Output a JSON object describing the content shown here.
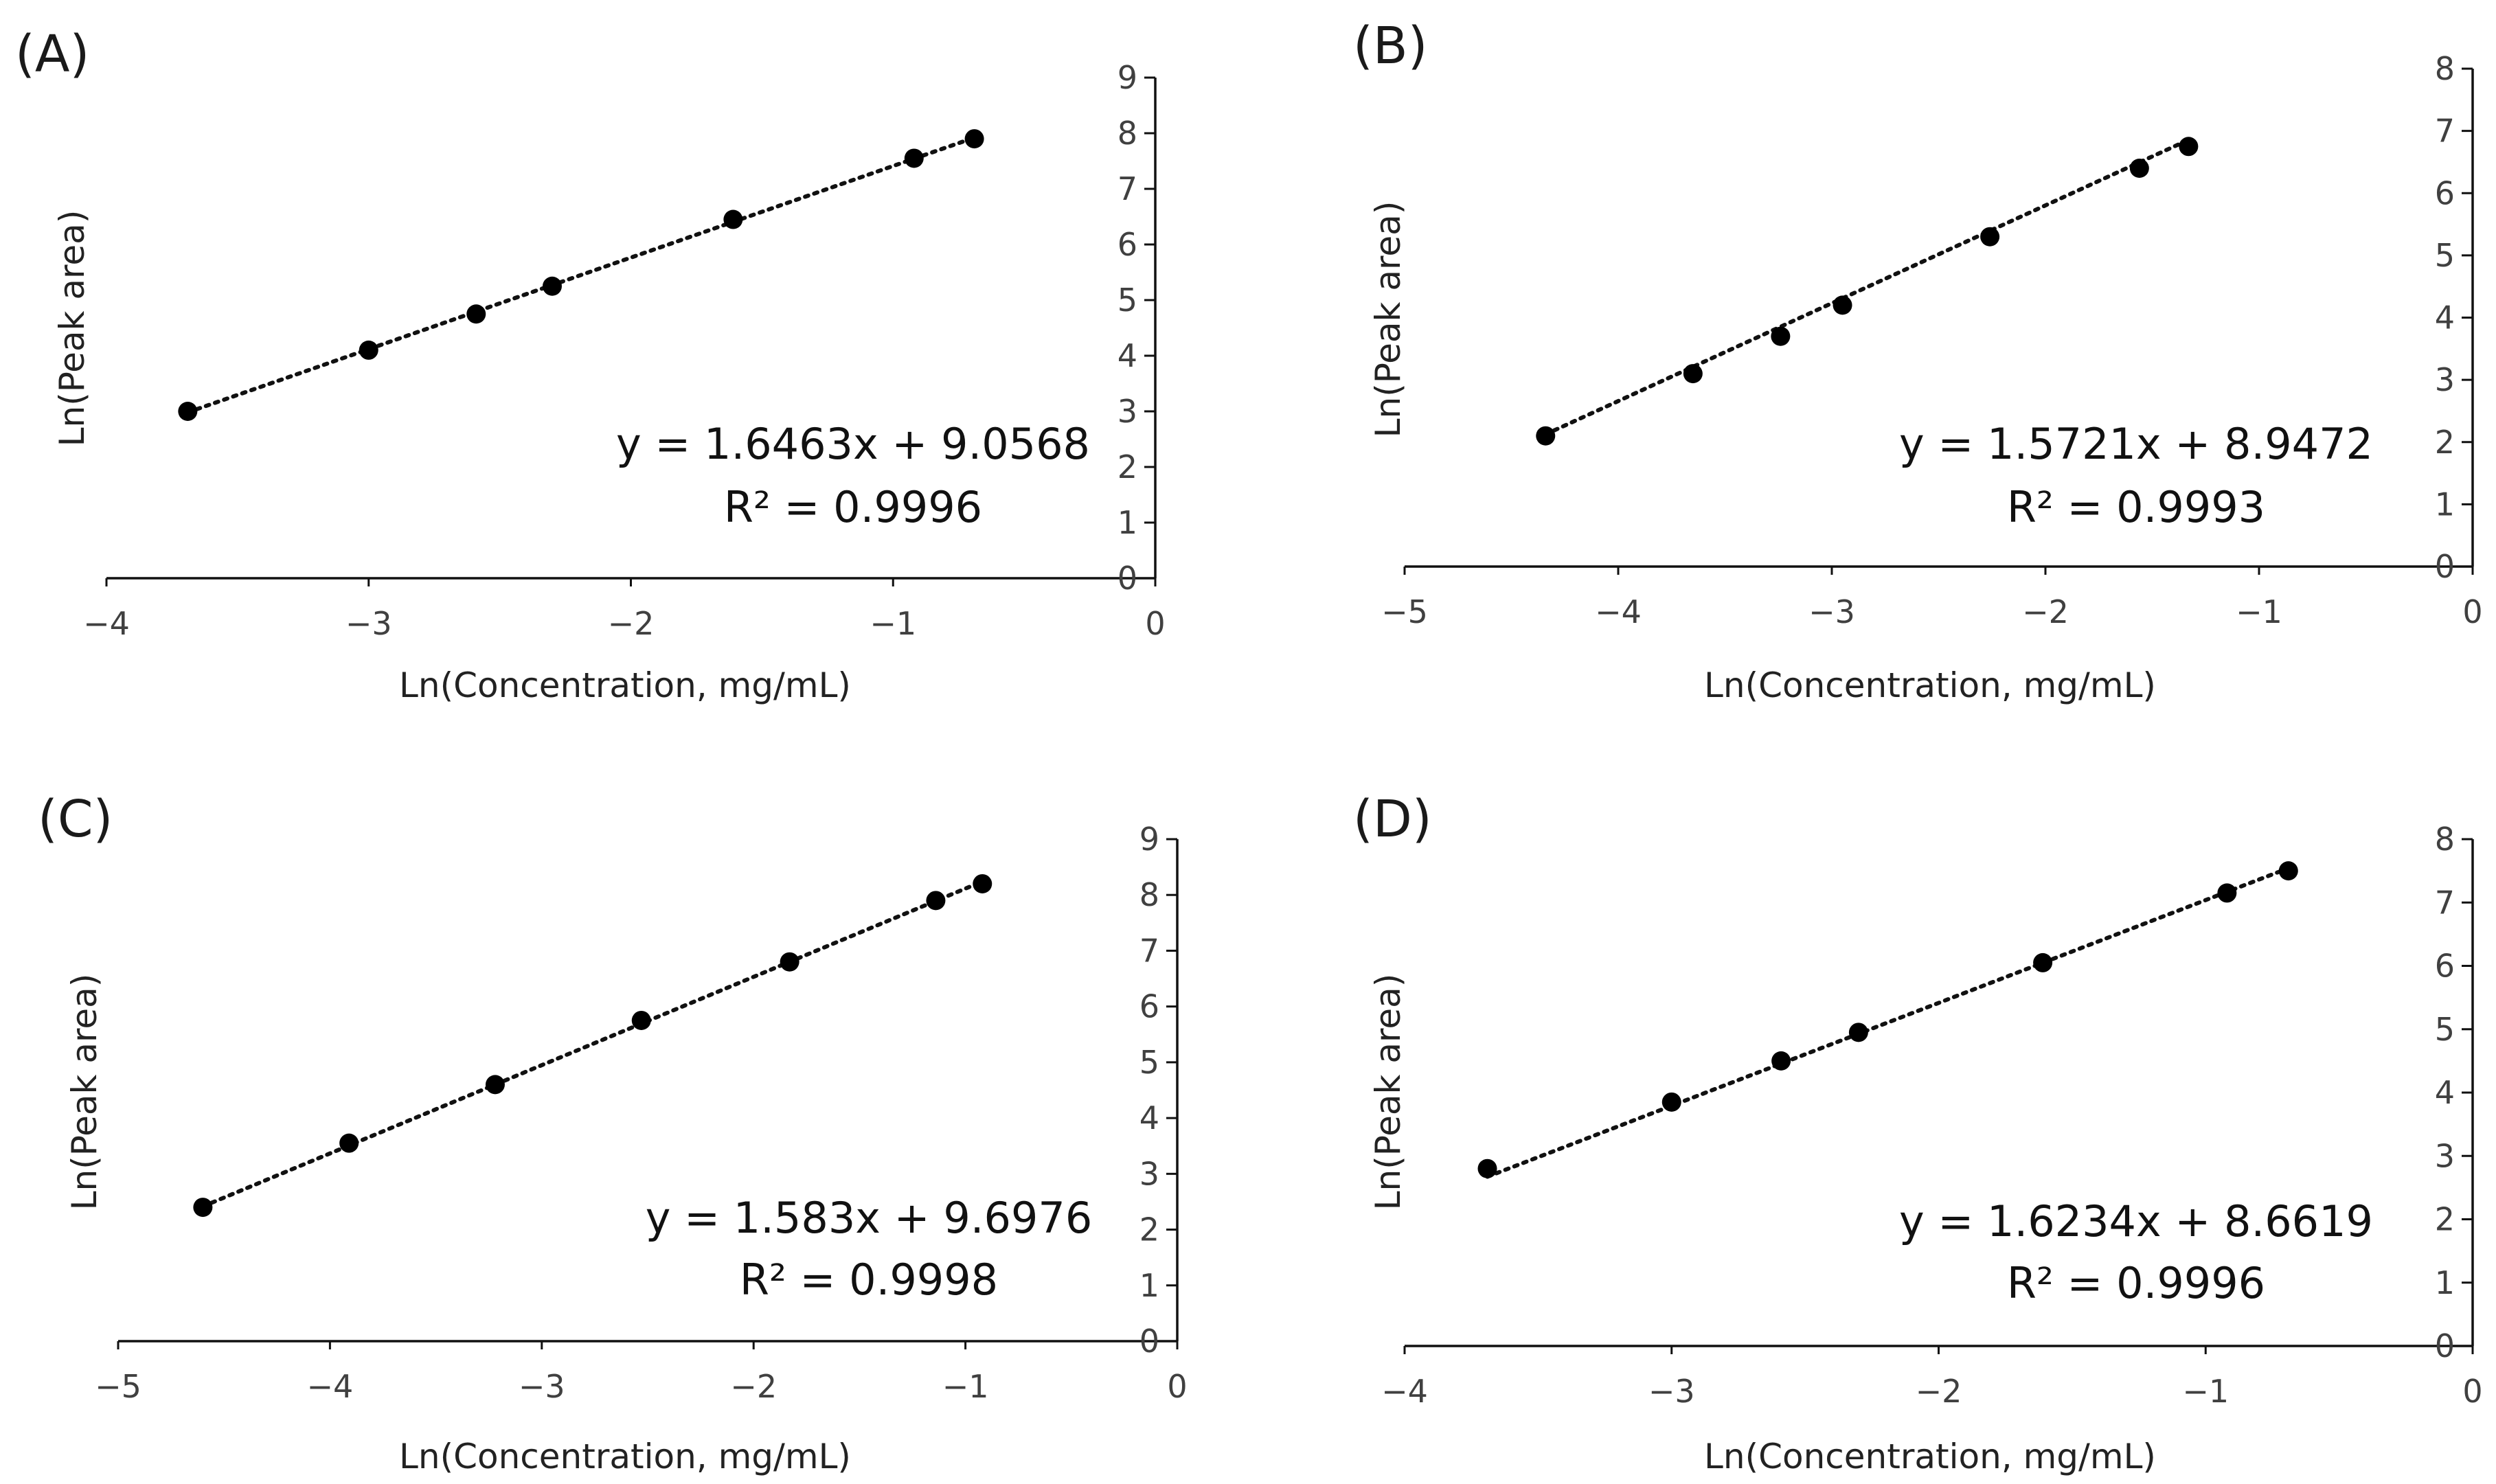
{
  "chart_data": [
    {
      "type": "scatter",
      "panel": "(A)",
      "xlabel": "Ln(Concentration, mg/mL)",
      "ylabel": "Ln(Peak area)",
      "xlim": [
        -4,
        0
      ],
      "ylim": [
        0,
        9
      ],
      "xticks": [
        -4,
        -3,
        -2,
        -1,
        0
      ],
      "yticks": [
        0,
        1,
        2,
        3,
        4,
        5,
        6,
        7,
        8,
        9
      ],
      "points": [
        {
          "x": -3.69,
          "y": 3.0
        },
        {
          "x": -3.0,
          "y": 4.1
        },
        {
          "x": -2.59,
          "y": 4.75
        },
        {
          "x": -2.3,
          "y": 5.25
        },
        {
          "x": -1.61,
          "y": 6.45
        },
        {
          "x": -0.92,
          "y": 7.55
        },
        {
          "x": -0.69,
          "y": 7.9
        }
      ],
      "trendline": {
        "slope": 1.6463,
        "intercept": 9.0568
      },
      "equation": "y = 1.6463x + 9.0568",
      "r2": "R² = 0.9996",
      "grid": false,
      "yaxis_side": "right"
    },
    {
      "type": "scatter",
      "panel": "(B)",
      "xlabel": "Ln(Concentration, mg/mL)",
      "ylabel": "Ln(Peak area)",
      "xlim": [
        -5,
        0
      ],
      "ylim": [
        0,
        8
      ],
      "xticks": [
        -5,
        -4,
        -3,
        -2,
        -1,
        0
      ],
      "yticks": [
        0,
        1,
        2,
        3,
        4,
        5,
        6,
        7,
        8
      ],
      "points": [
        {
          "x": -4.34,
          "y": 2.1
        },
        {
          "x": -3.65,
          "y": 3.1
        },
        {
          "x": -3.24,
          "y": 3.7
        },
        {
          "x": -2.95,
          "y": 4.2
        },
        {
          "x": -2.26,
          "y": 5.3
        },
        {
          "x": -1.56,
          "y": 6.4
        },
        {
          "x": -1.33,
          "y": 6.75
        }
      ],
      "trendline": {
        "slope": 1.5721,
        "intercept": 8.9472
      },
      "equation": "y = 1.5721x + 8.9472",
      "r2": "R² = 0.9993",
      "grid": false,
      "yaxis_side": "right"
    },
    {
      "type": "scatter",
      "panel": "(C)",
      "xlabel": "Ln(Concentration, mg/mL)",
      "ylabel": "Ln(Peak area)",
      "xlim": [
        -5,
        0
      ],
      "ylim": [
        0,
        9
      ],
      "xticks": [
        -5,
        -4,
        -3,
        -2,
        -1,
        0
      ],
      "yticks": [
        0,
        1,
        2,
        3,
        4,
        5,
        6,
        7,
        8,
        9
      ],
      "points": [
        {
          "x": -4.6,
          "y": 2.4
        },
        {
          "x": -3.91,
          "y": 3.55
        },
        {
          "x": -3.22,
          "y": 4.6
        },
        {
          "x": -2.53,
          "y": 5.75
        },
        {
          "x": -1.83,
          "y": 6.8
        },
        {
          "x": -1.14,
          "y": 7.9
        },
        {
          "x": -0.92,
          "y": 8.2
        }
      ],
      "trendline": {
        "slope": 1.583,
        "intercept": 9.6976
      },
      "equation": "y = 1.583x + 9.6976",
      "r2": "R² = 0.9998",
      "grid": false,
      "yaxis_side": "right"
    },
    {
      "type": "scatter",
      "panel": "(D)",
      "xlabel": "Ln(Concentration, mg/mL)",
      "ylabel": "Ln(Peak area)",
      "xlim": [
        -4,
        0
      ],
      "ylim": [
        0,
        8
      ],
      "xticks": [
        -4,
        -3,
        -2,
        -1,
        0
      ],
      "yticks": [
        0,
        1,
        2,
        3,
        4,
        5,
        6,
        7,
        8
      ],
      "points": [
        {
          "x": -3.69,
          "y": 2.8
        },
        {
          "x": -3.0,
          "y": 3.85
        },
        {
          "x": -2.59,
          "y": 4.5
        },
        {
          "x": -2.3,
          "y": 4.95
        },
        {
          "x": -1.61,
          "y": 6.05
        },
        {
          "x": -0.92,
          "y": 7.15
        },
        {
          "x": -0.69,
          "y": 7.5
        }
      ],
      "trendline": {
        "slope": 1.6234,
        "intercept": 8.6619
      },
      "equation": "y = 1.6234x + 8.6619",
      "r2": "R² = 0.9996",
      "grid": false,
      "yaxis_side": "right"
    }
  ]
}
